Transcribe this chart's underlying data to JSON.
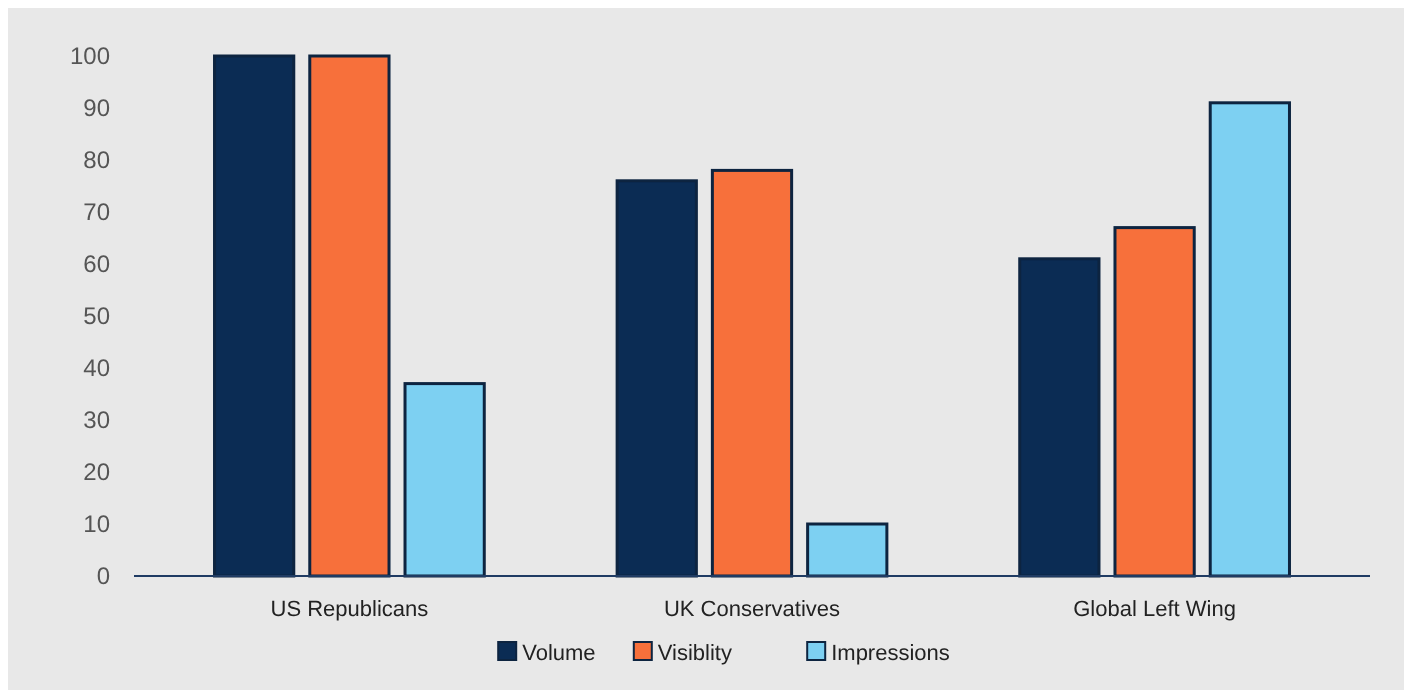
{
  "chart_data": {
    "type": "bar",
    "categories": [
      "US Republicans",
      "UK Conservatives",
      "Global Left Wing"
    ],
    "series": [
      {
        "name": "Volume",
        "color": "#0b2c54",
        "values": [
          100,
          76,
          61
        ]
      },
      {
        "name": "Visiblity",
        "color": "#f7703b",
        "values": [
          100,
          78,
          67
        ]
      },
      {
        "name": "Impressions",
        "color": "#7dd0f2",
        "values": [
          37,
          10,
          91
        ]
      }
    ],
    "ylim": [
      0,
      100
    ],
    "yticks": [
      0,
      10,
      20,
      30,
      40,
      50,
      60,
      70,
      80,
      90,
      100
    ],
    "grid": false,
    "legend": "bottom"
  }
}
